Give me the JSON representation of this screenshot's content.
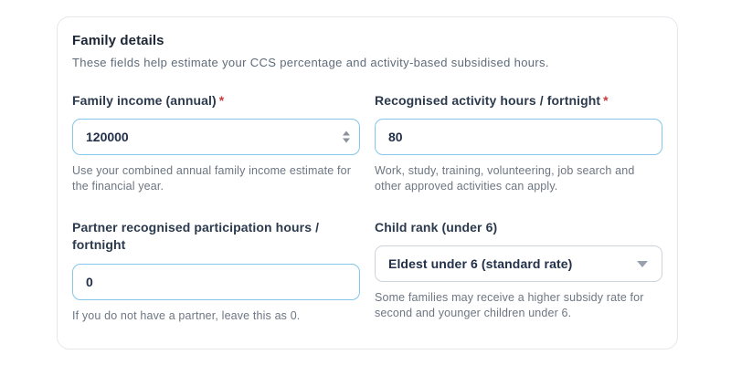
{
  "card": {
    "title": "Family details",
    "subtitle": "These fields help estimate your CCS percentage and activity-based subsidised hours.",
    "required_marker": "*",
    "fields": [
      {
        "id": "family-income",
        "label": "Family income (annual)",
        "required": true,
        "control": "number-input",
        "value": "120000",
        "help": "Use your combined annual family income estimate for the financial year."
      },
      {
        "id": "activity-hours",
        "label": "Recognised activity hours / fortnight",
        "required": true,
        "control": "number-input",
        "value": "80",
        "help": "Work, study, training, volunteering, job search and other approved activities can apply."
      },
      {
        "id": "partner-hours",
        "label": "Partner recognised participation hours / fortnight",
        "required": false,
        "control": "number-input",
        "value": "0",
        "help": "If you do not have a partner, leave this as 0."
      },
      {
        "id": "child-rank",
        "label": "Child rank (under 6)",
        "required": false,
        "control": "select",
        "value": "Eldest under 6 (standard rate)",
        "help": "Some families may receive a higher subsidy rate for second and younger children under 6."
      }
    ]
  },
  "colors": {
    "input_border": "#85c6ea",
    "select_border": "#ced4dc",
    "card_border": "#e5e7eb",
    "asterisk_color": "#c43c3c",
    "title_color": "#1c2634",
    "label_color": "#2c3a4d",
    "help_color": "#6d7682"
  }
}
